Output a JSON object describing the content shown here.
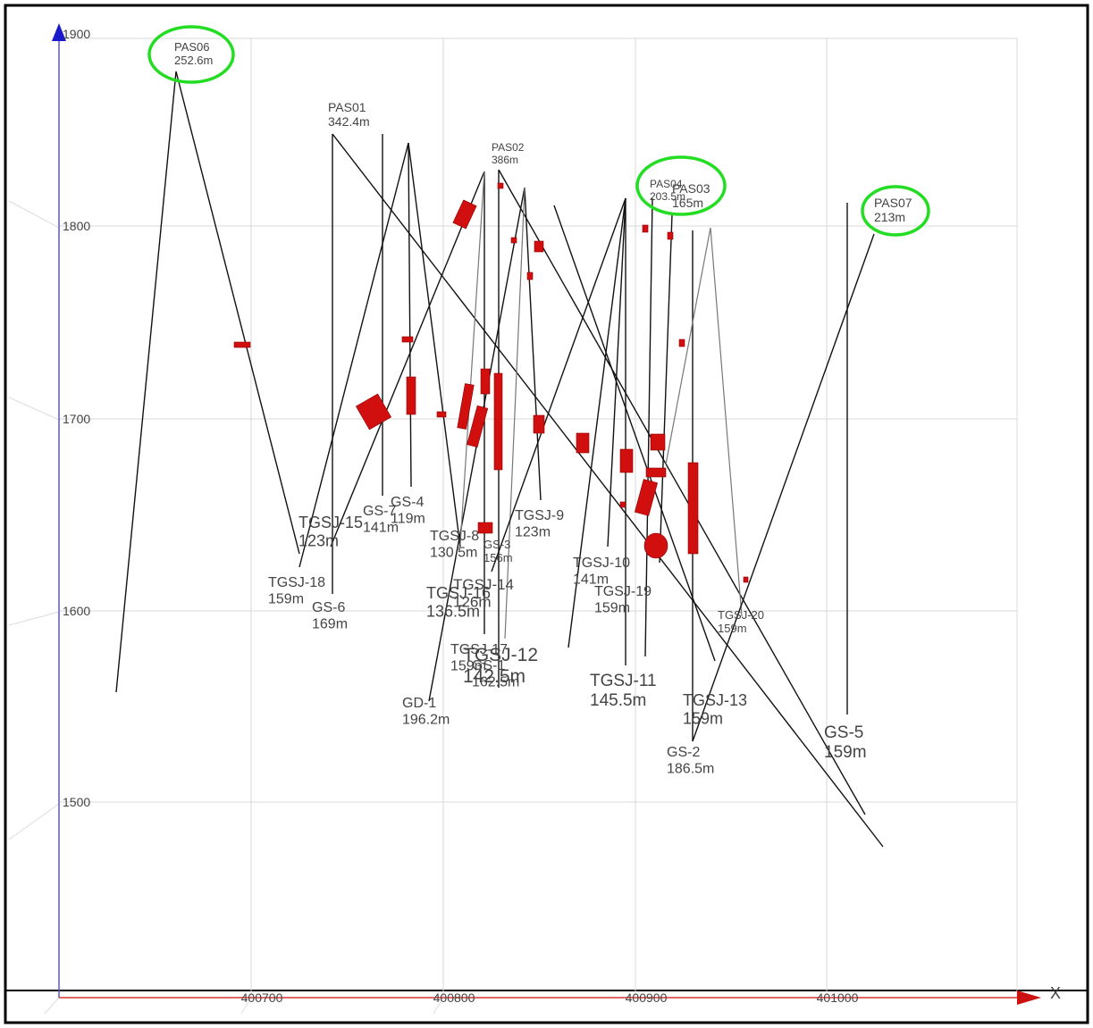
{
  "axes": {
    "y_ticks": [
      "1900",
      "1800",
      "1700",
      "1600",
      "1500"
    ],
    "x_ticks": [
      "400700",
      "400800",
      "400900",
      "401000"
    ],
    "x_label": "X"
  },
  "drillholes": [
    {
      "name": "PAS06",
      "length": "252.6m"
    },
    {
      "name": "PAS01",
      "length": "342.4m"
    },
    {
      "name": "PAS02",
      "length": "386m"
    },
    {
      "name": "PAS04",
      "length": "203.5m"
    },
    {
      "name": "PAS03",
      "length": "165m"
    },
    {
      "name": "PAS07",
      "length": "213m"
    },
    {
      "name": "TGSJ-15",
      "length": "123m"
    },
    {
      "name": "GS-7",
      "length": "141m"
    },
    {
      "name": "GS-4",
      "length": "119m"
    },
    {
      "name": "TGSJ-18",
      "length": "159m"
    },
    {
      "name": "GS-6",
      "length": "169m"
    },
    {
      "name": "TGSJ-8",
      "length": "130.5m"
    },
    {
      "name": "GS-3",
      "length": "156m"
    },
    {
      "name": "TGSJ-9",
      "length": "123m"
    },
    {
      "name": "TGSJ-14",
      "length": "126m"
    },
    {
      "name": "TGSJ-16",
      "length": "136.5m"
    },
    {
      "name": "TGSJ-10",
      "length": "141m"
    },
    {
      "name": "TGSJ-19",
      "length": "159m"
    },
    {
      "name": "TGSJ-20",
      "length": "159m"
    },
    {
      "name": "TGSJ-17",
      "length": "159m"
    },
    {
      "name": "TGSJ-12",
      "length": "142.5m"
    },
    {
      "name": "GS-1",
      "length": "162.5m"
    },
    {
      "name": "GD-1",
      "length": "196.2m"
    },
    {
      "name": "TGSJ-11",
      "length": "145.5m"
    },
    {
      "name": "TGSJ-13",
      "length": "159m"
    },
    {
      "name": "GS-2",
      "length": "186.5m"
    },
    {
      "name": "GS-5",
      "length": "159m"
    }
  ]
}
